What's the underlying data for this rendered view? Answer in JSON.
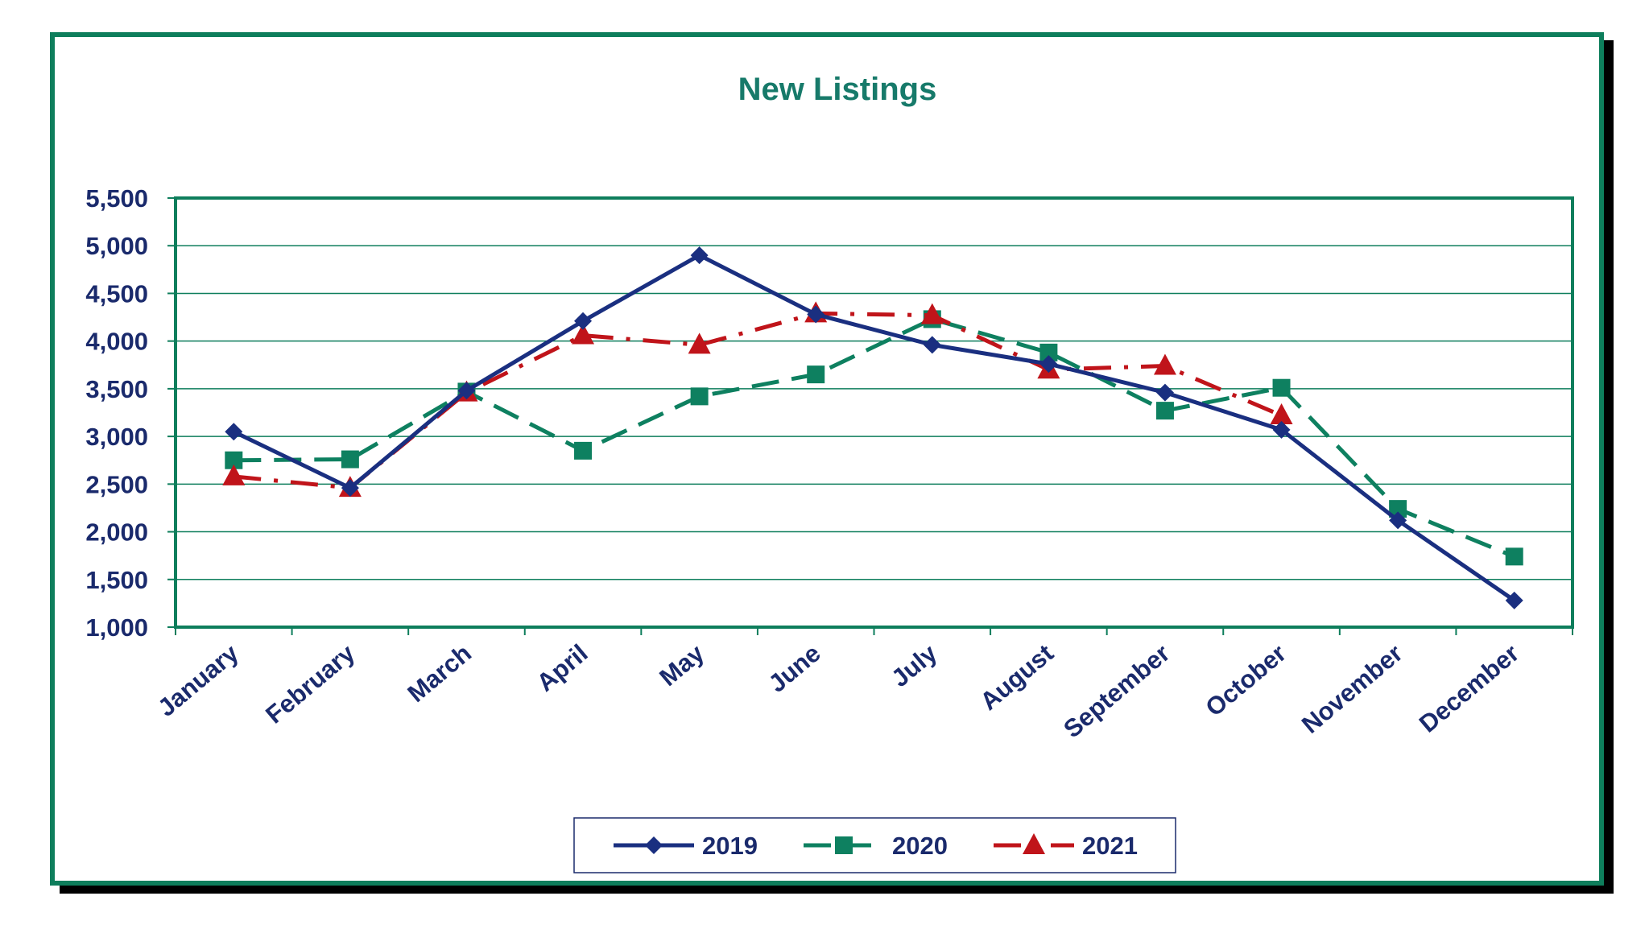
{
  "chart_data": {
    "type": "line",
    "title": "New Listings",
    "categories": [
      "January",
      "February",
      "March",
      "April",
      "May",
      "June",
      "July",
      "August",
      "September",
      "October",
      "November",
      "December"
    ],
    "ylim": [
      1000,
      5500
    ],
    "yticks": [
      "5,500",
      "5,000",
      "4,500",
      "4,000",
      "3,500",
      "3,000",
      "2,500",
      "2,000",
      "1,500",
      "1,000"
    ],
    "grid": true,
    "legend_position": "bottom",
    "series": [
      {
        "name": "2019",
        "color": "#1a2f80",
        "marker": "diamond",
        "dash": "solid",
        "values": [
          3050,
          2460,
          3480,
          4210,
          4900,
          4280,
          3960,
          3760,
          3460,
          3070,
          2120,
          1280
        ]
      },
      {
        "name": "2020",
        "color": "#0e8060",
        "marker": "square",
        "dash": "dashed",
        "values": [
          2750,
          2760,
          3470,
          2850,
          3420,
          3650,
          4230,
          3880,
          3270,
          3510,
          2240,
          1740
        ]
      },
      {
        "name": "2021",
        "color": "#c0141a",
        "marker": "triangle",
        "dash": "dashdot",
        "values": [
          2580,
          2460,
          3460,
          4060,
          3960,
          4290,
          4270,
          3700,
          3740,
          3220,
          null,
          null
        ]
      }
    ]
  }
}
